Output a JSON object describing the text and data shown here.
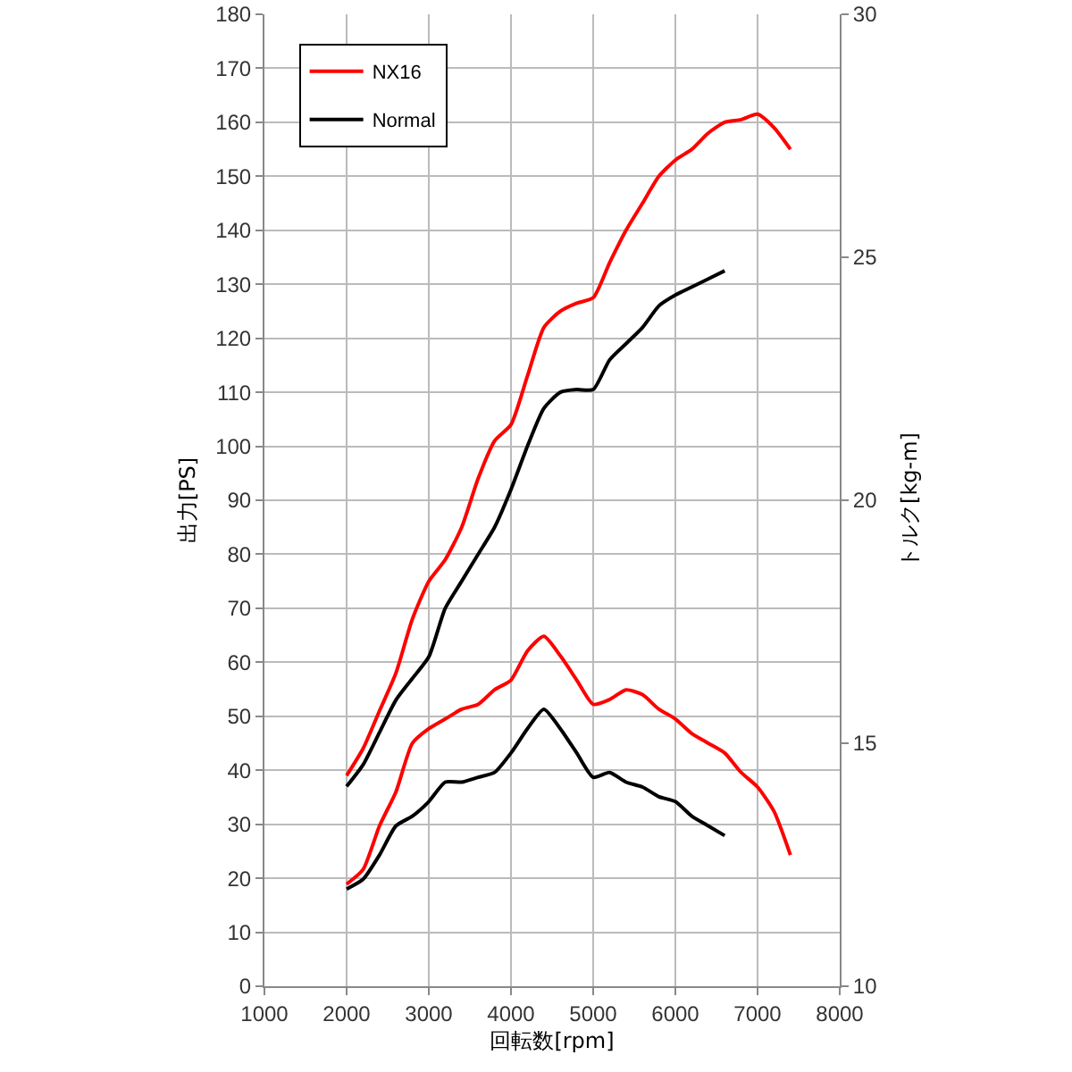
{
  "chart_data": {
    "type": "line",
    "xlabel": "回転数[rpm]",
    "ylabel": "出力[PS]",
    "y2label": "トルク[kg-m]",
    "x": [
      2000,
      2200,
      2400,
      2600,
      2800,
      3000,
      3200,
      3400,
      3600,
      3800,
      4000,
      4200,
      4400,
      4600,
      4800,
      5000,
      5200,
      5400,
      5600,
      5800,
      6000,
      6200,
      6400,
      6600,
      6800,
      7000,
      7200,
      7400
    ],
    "series": [
      {
        "name": "NX16",
        "color": "#ff0000",
        "values": [
          39,
          44,
          51,
          58,
          68,
          75,
          79,
          85,
          94,
          101,
          104,
          113,
          122,
          125,
          126.5,
          127.5,
          134,
          140,
          145,
          150,
          153,
          155,
          158,
          160,
          160.5,
          161.5,
          159,
          155
        ]
      },
      {
        "name": "Normal",
        "color": "#000000",
        "values": [
          37,
          41,
          47,
          53,
          57,
          61,
          70,
          75,
          80,
          85,
          92,
          100,
          107,
          110,
          110.5,
          110.5,
          116,
          119,
          122,
          126,
          128,
          129.5,
          131,
          132.5,
          null,
          null,
          null,
          null
        ]
      },
      {
        "color": "#ff0000",
        "axis": "y2",
        "values": [
          12.1,
          12.4,
          13.3,
          14.0,
          15.0,
          15.3,
          15.5,
          15.7,
          15.8,
          16.1,
          16.3,
          16.9,
          17.2,
          16.8,
          16.3,
          15.8,
          15.9,
          16.1,
          16.0,
          15.7,
          15.5,
          15.2,
          15.0,
          14.8,
          14.4,
          14.1,
          13.6,
          12.7
        ]
      },
      {
        "color": "#000000",
        "axis": "y2",
        "values": [
          12.0,
          12.2,
          12.7,
          13.3,
          13.5,
          13.8,
          14.2,
          14.2,
          14.3,
          14.4,
          14.8,
          15.3,
          15.7,
          15.3,
          14.8,
          14.3,
          14.4,
          14.2,
          14.1,
          13.9,
          13.8,
          13.5,
          13.3,
          13.1,
          null,
          null,
          null,
          null
        ]
      }
    ],
    "xlim": [
      1000,
      8000
    ],
    "xticks": [
      1000,
      2000,
      3000,
      4000,
      5000,
      6000,
      7000,
      8000
    ],
    "ylim": [
      0,
      180
    ],
    "yticks": [
      0,
      10,
      20,
      30,
      40,
      50,
      60,
      70,
      80,
      90,
      100,
      110,
      120,
      130,
      140,
      150,
      160,
      170,
      180
    ],
    "y2lim": [
      10,
      30
    ],
    "y2ticks": [
      10,
      15,
      20,
      25,
      30
    ],
    "grid": true,
    "legend": "top left",
    "marker": "none",
    "line_style": "solid"
  }
}
